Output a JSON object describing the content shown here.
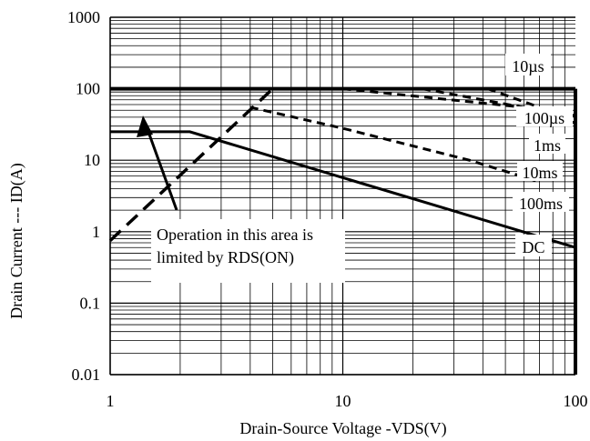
{
  "chart_data": {
    "type": "line",
    "title": "",
    "xlabel": "Drain-Source Voltage -VDS(V)",
    "ylabel": "Drain Current --- ID(A)",
    "xscale": "log",
    "yscale": "log",
    "xlim": [
      1,
      100
    ],
    "ylim": [
      0.01,
      1000
    ],
    "grid": true,
    "x_ticks": [
      "1",
      "10",
      "100"
    ],
    "y_ticks": [
      "0.01",
      "0.1",
      "1",
      "10",
      "100",
      "1000"
    ],
    "series": [
      {
        "name": "10µs",
        "style": "solid-bold",
        "x": [
          1,
          100
        ],
        "y": [
          100,
          100
        ]
      },
      {
        "name": "100µs",
        "style": "dashed",
        "x": [
          10,
          60,
          100
        ],
        "y": [
          100,
          55,
          33
        ]
      },
      {
        "name": "1ms",
        "style": "dashed",
        "x": [
          22,
          70,
          100
        ],
        "y": [
          100,
          50,
          42
        ]
      },
      {
        "name": "10ms",
        "style": "dashed",
        "x": [
          4,
          10,
          35,
          70
        ],
        "y": [
          55,
          28,
          10,
          5
        ]
      },
      {
        "name": "100ms",
        "style": "dashed",
        "x": [
          42,
          70
        ],
        "y": [
          100,
          55
        ]
      },
      {
        "name": "DC",
        "style": "solid",
        "x": [
          1,
          2.2,
          70,
          100
        ],
        "y": [
          25,
          25,
          0.85,
          0.6
        ]
      },
      {
        "name": "RDS(ON) limit",
        "style": "dashed-bold",
        "x": [
          1,
          5
        ],
        "y": [
          0.75,
          100
        ]
      }
    ],
    "curve_labels": [
      "10µs",
      "100µs",
      "1ms",
      "10ms",
      "100ms",
      "DC"
    ],
    "annotation": {
      "lines": [
        "Operation in this area is",
        "limited by RDS(ON)"
      ]
    }
  }
}
